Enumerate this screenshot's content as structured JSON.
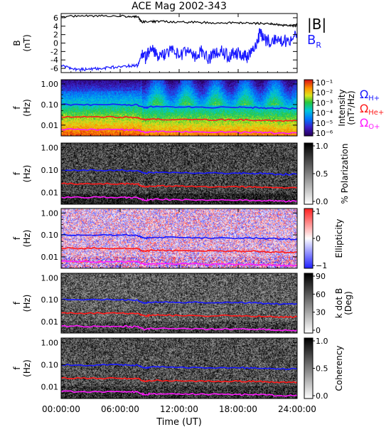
{
  "chart_data": [
    {
      "id": "mag",
      "type": "line",
      "title": "ACE Mag 2002-343",
      "ylabel": "B",
      "yunit": "(nT)",
      "yticks": [
        "6",
        "4",
        "2",
        "0",
        "-2",
        "-4",
        "-6"
      ],
      "ylim": [
        -7,
        7
      ],
      "xlim": [
        0,
        24
      ],
      "legend": [
        {
          "label": "|B|",
          "color": "#000000"
        },
        {
          "label": "B",
          "sub": "R",
          "color": "#1a1aff"
        }
      ],
      "series": [
        {
          "name": "|B|",
          "color": "#000000",
          "x": [
            0,
            2,
            4,
            6,
            7,
            7.8,
            8.2,
            9,
            10,
            12,
            14,
            16,
            18,
            19.5,
            20.5,
            21.5,
            22.5,
            23.5,
            24
          ],
          "y": [
            6.3,
            6.4,
            6.4,
            6.4,
            6.3,
            6.2,
            5.0,
            5.1,
            5.1,
            5.0,
            4.9,
            4.8,
            4.8,
            4.7,
            4.6,
            4.6,
            4.2,
            4.1,
            4.3
          ]
        },
        {
          "name": "B_R",
          "color": "#1a1aff",
          "x": [
            0,
            1,
            2,
            3,
            4,
            5,
            6,
            7,
            7.8,
            8.2,
            8.6,
            9.2,
            10,
            10.6,
            11.4,
            12,
            12.8,
            13.5,
            14.2,
            15,
            15.6,
            16.2,
            17,
            17.6,
            18.4,
            19,
            19.8,
            20.2,
            20.6,
            21.4,
            22.2,
            23,
            24
          ],
          "y": [
            -5.2,
            -6.1,
            -6.3,
            -6.2,
            -6.0,
            -5.8,
            -5.6,
            -5.4,
            -5.3,
            -2.5,
            -3.8,
            -1.2,
            -3.5,
            -2.8,
            -1.5,
            -3.0,
            -1.8,
            -3.2,
            -2.0,
            -3.6,
            -2.6,
            -1.4,
            -3.0,
            -2.2,
            -2.8,
            -3.4,
            -1.2,
            2.3,
            1.0,
            0.2,
            0.8,
            0.4,
            2.4
          ]
        }
      ]
    },
    {
      "id": "intensity",
      "type": "heatmap",
      "ylabel": "f",
      "yunit": "(Hz)",
      "yscale": "log",
      "yticks": [
        "1.00",
        "0.10",
        "0.01"
      ],
      "colorbar": {
        "label": "Intensity",
        "unit": "(nT²/Hz)",
        "scale": "log",
        "ticks": [
          "10⁻¹",
          "10⁻²",
          "10⁻³",
          "10⁻⁴",
          "10⁻⁵",
          "10⁻⁶"
        ]
      },
      "gyro_legend": [
        {
          "symbol": "Ω",
          "sub": "H+",
          "color": "#1a1aff"
        },
        {
          "symbol": "Ω",
          "sub": "He+",
          "color": "#ff1a1a"
        },
        {
          "symbol": "Ω",
          "sub": "O+",
          "color": "#ff1aff"
        }
      ]
    },
    {
      "id": "polarization",
      "type": "heatmap",
      "ylabel": "f",
      "yunit": "(Hz)",
      "yscale": "log",
      "yticks": [
        "1.00",
        "0.10",
        "0.01"
      ],
      "colorbar": {
        "label": "% Polarization",
        "ticks": [
          "1.0",
          "0.5",
          "0.0"
        ]
      }
    },
    {
      "id": "ellipticity",
      "type": "heatmap",
      "ylabel": "f",
      "yunit": "(Hz)",
      "yscale": "log",
      "yticks": [
        "1.00",
        "0.10",
        "0.01"
      ],
      "colorbar": {
        "label": "Ellipticity",
        "ticks": [
          "1",
          "0",
          "−1"
        ]
      }
    },
    {
      "id": "kdotb",
      "type": "heatmap",
      "ylabel": "f",
      "yunit": "(Hz)",
      "yscale": "log",
      "yticks": [
        "1.00",
        "0.10",
        "0.01"
      ],
      "colorbar": {
        "label": "k dot B",
        "unit": "(Deg)",
        "ticks": [
          "90",
          "60",
          "30",
          "0"
        ]
      }
    },
    {
      "id": "coherency",
      "type": "heatmap",
      "ylabel": "f",
      "yunit": "(Hz)",
      "yscale": "log",
      "yticks": [
        "1.00",
        "0.10",
        "0.01"
      ],
      "colorbar": {
        "label": "Coherency",
        "ticks": [
          "1.0",
          "0.5",
          "0.0"
        ]
      }
    }
  ],
  "gyrofrequencies": {
    "xlim": [
      0,
      24
    ],
    "ylim_hz": [
      0.003,
      1.6
    ],
    "x": [
      0,
      2,
      4,
      6,
      7,
      7.8,
      8.2,
      8.6,
      9,
      10,
      12,
      14,
      16,
      18,
      19,
      20,
      21,
      22,
      23,
      24
    ],
    "H+": [
      0.1,
      0.098,
      0.098,
      0.098,
      0.096,
      0.095,
      0.078,
      0.07,
      0.078,
      0.078,
      0.076,
      0.075,
      0.073,
      0.072,
      0.072,
      0.07,
      0.068,
      0.066,
      0.064,
      0.066
    ],
    "He+": [
      0.025,
      0.0245,
      0.0245,
      0.0245,
      0.024,
      0.0238,
      0.0195,
      0.0175,
      0.0195,
      0.0195,
      0.019,
      0.0188,
      0.0183,
      0.018,
      0.018,
      0.0175,
      0.017,
      0.0165,
      0.016,
      0.0165
    ],
    "O+": [
      0.0062,
      0.0061,
      0.0061,
      0.0061,
      0.006,
      0.0059,
      0.0049,
      0.0044,
      0.0049,
      0.0049,
      0.0048,
      0.0047,
      0.0046,
      0.0045,
      0.0045,
      0.0044,
      0.0043,
      0.0041,
      0.004,
      0.0041
    ]
  },
  "colors": {
    "h_plus": "#1a1aff",
    "he_plus": "#ff1a1a",
    "o_plus": "#ff1aff"
  },
  "xaxis": {
    "label": "Time (UT)",
    "ticks": [
      "00:00:00",
      "06:00:00",
      "12:00:00",
      "18:00:00",
      "24:00:00"
    ],
    "tick_hours": [
      0,
      6,
      12,
      18,
      24
    ]
  }
}
